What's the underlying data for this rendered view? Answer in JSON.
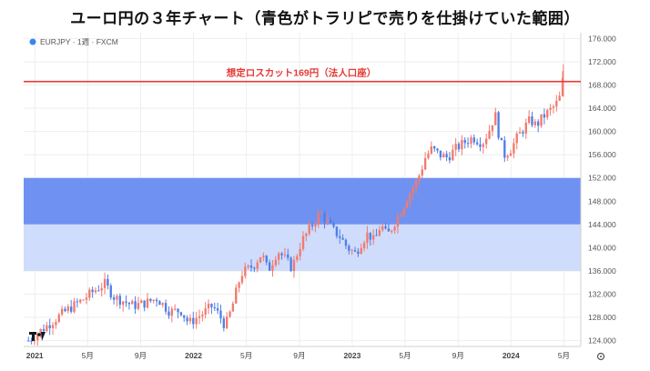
{
  "page": {
    "title": "ユーロ円の３年チャート（青色がトラリピで売りを仕掛けていた範囲）"
  },
  "chart_data": {
    "type": "candlestick",
    "symbol_label": "EURJPY · 1週 · FXCM",
    "y_ticks": [
      "176.000",
      "172.000",
      "168.000",
      "164.000",
      "160.000",
      "156.000",
      "152.000",
      "148.000",
      "144.000",
      "140.000",
      "136.000",
      "132.000",
      "128.000",
      "124.000"
    ],
    "ylim": [
      123,
      177
    ],
    "x_ticks": [
      {
        "label": "2021",
        "t": 2021.0
      },
      {
        "label": "5月",
        "t": 2021.333
      },
      {
        "label": "9月",
        "t": 2021.667
      },
      {
        "label": "2022",
        "t": 2022.0
      },
      {
        "label": "5月",
        "t": 2022.333
      },
      {
        "label": "9月",
        "t": 2022.667
      },
      {
        "label": "2023",
        "t": 2023.0
      },
      {
        "label": "5月",
        "t": 2023.333
      },
      {
        "label": "9月",
        "t": 2023.667
      },
      {
        "label": "2024",
        "t": 2024.0
      },
      {
        "label": "5月",
        "t": 2024.333
      }
    ],
    "xlim": [
      2020.93,
      2024.44
    ],
    "zones": [
      {
        "name": "dark",
        "from": 144,
        "to": 152,
        "color": "#6f92f2"
      },
      {
        "name": "light",
        "from": 136,
        "to": 144,
        "color": "#cfdcfb"
      }
    ],
    "hline": {
      "value": 168.6,
      "label": "想定ロスカット169円（法人口座）",
      "color": "#e53935"
    },
    "colors": {
      "up": "#f27a6e",
      "down": "#4f7fe6"
    },
    "price_path": [
      [
        2020.96,
        124.0
      ],
      [
        2021.05,
        126.0
      ],
      [
        2021.12,
        127.5
      ],
      [
        2021.2,
        129.2
      ],
      [
        2021.3,
        131.0
      ],
      [
        2021.37,
        132.5
      ],
      [
        2021.44,
        133.8
      ],
      [
        2021.5,
        131.5
      ],
      [
        2021.56,
        130.8
      ],
      [
        2021.62,
        130.0
      ],
      [
        2021.7,
        130.5
      ],
      [
        2021.77,
        131.3
      ],
      [
        2021.85,
        129.0
      ],
      [
        2021.92,
        129.2
      ],
      [
        2021.97,
        127.0
      ],
      [
        2022.05,
        128.5
      ],
      [
        2022.12,
        130.0
      ],
      [
        2022.17,
        128.0
      ],
      [
        2022.2,
        126.5
      ],
      [
        2022.24,
        129.5
      ],
      [
        2022.3,
        135.5
      ],
      [
        2022.38,
        137.0
      ],
      [
        2022.43,
        139.0
      ],
      [
        2022.47,
        136.0
      ],
      [
        2022.53,
        139.5
      ],
      [
        2022.58,
        138.0
      ],
      [
        2022.62,
        136.5
      ],
      [
        2022.68,
        141.0
      ],
      [
        2022.75,
        144.0
      ],
      [
        2022.8,
        146.0
      ],
      [
        2022.84,
        144.5
      ],
      [
        2022.88,
        143.0
      ],
      [
        2022.92,
        142.0
      ],
      [
        2022.97,
        140.0
      ],
      [
        2023.02,
        139.0
      ],
      [
        2023.06,
        141.0
      ],
      [
        2023.1,
        142.5
      ],
      [
        2023.14,
        141.0
      ],
      [
        2023.18,
        144.0
      ],
      [
        2023.22,
        142.0
      ],
      [
        2023.27,
        144.5
      ],
      [
        2023.31,
        146.5
      ],
      [
        2023.35,
        149.0
      ],
      [
        2023.39,
        150.5
      ],
      [
        2023.43,
        153.0
      ],
      [
        2023.46,
        155.5
      ],
      [
        2023.5,
        157.0
      ],
      [
        2023.55,
        156.0
      ],
      [
        2023.6,
        155.5
      ],
      [
        2023.65,
        157.0
      ],
      [
        2023.7,
        158.0
      ],
      [
        2023.76,
        159.0
      ],
      [
        2023.82,
        158.0
      ],
      [
        2023.86,
        160.0
      ],
      [
        2023.9,
        163.0
      ],
      [
        2023.93,
        158.5
      ],
      [
        2023.96,
        156.0
      ],
      [
        2024.0,
        157.0
      ],
      [
        2024.04,
        159.0
      ],
      [
        2024.08,
        160.5
      ],
      [
        2024.12,
        162.0
      ],
      [
        2024.16,
        161.0
      ],
      [
        2024.2,
        162.5
      ],
      [
        2024.24,
        163.5
      ],
      [
        2024.28,
        164.5
      ],
      [
        2024.31,
        166.0
      ],
      [
        2024.33,
        169.5
      ]
    ]
  }
}
